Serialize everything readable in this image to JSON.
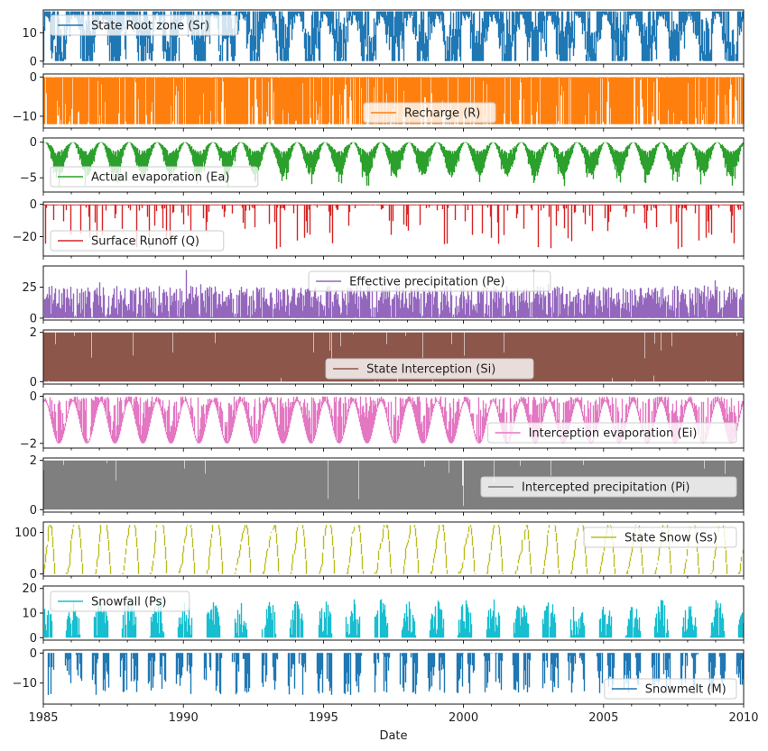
{
  "chart_data": {
    "type": "line",
    "xlabel": "Date",
    "xlim": [
      1985,
      2010
    ],
    "xticks": [
      "1985",
      "1990",
      "1995",
      "2000",
      "2005",
      "2010"
    ],
    "panels": [
      {
        "name": "State Root zone (Sr)",
        "color": "#1f77b4",
        "ylim": [
          -1,
          18
        ],
        "yticks": [
          0,
          10
        ],
        "legend": "top-left",
        "pattern": "sr"
      },
      {
        "name": "Recharge (R)",
        "color": "#ff7f0e",
        "ylim": [
          -13,
          0.8
        ],
        "yticks": [
          0,
          -10
        ],
        "legend": "bottom-center",
        "pattern": "recharge"
      },
      {
        "name": "Actual evaporation (Ea)",
        "color": "#2ca02c",
        "ylim": [
          -7,
          0.6
        ],
        "yticks": [
          0,
          -5
        ],
        "legend": "bottom-left",
        "pattern": "ea"
      },
      {
        "name": "Surface Runoff (Q)",
        "color": "#d62728",
        "ylim": [
          -32,
          1.5
        ],
        "yticks": [
          0,
          -20
        ],
        "legend": "bottom-left",
        "pattern": "q"
      },
      {
        "name": "Effective precipitation (Pe)",
        "color": "#9467bd",
        "ylim": [
          -1.5,
          42
        ],
        "yticks": [
          0,
          25
        ],
        "legend": "top-center",
        "pattern": "pe"
      },
      {
        "name": "State Interception (Si)",
        "color": "#8c564b",
        "ylim": [
          -0.1,
          2.1
        ],
        "yticks": [
          0,
          2
        ],
        "legend": "bottom-center",
        "pattern": "si"
      },
      {
        "name": "Interception evaporation (Ei)",
        "color": "#e377c2",
        "ylim": [
          -2.2,
          0.1
        ],
        "yticks": [
          0,
          -2
        ],
        "legend": "bottom-right",
        "pattern": "ei"
      },
      {
        "name": "Intercepted precipitation (Pi)",
        "color": "#7f7f7f",
        "ylim": [
          -0.1,
          2.1
        ],
        "yticks": [
          0,
          2
        ],
        "legend": "center-right",
        "pattern": "pi"
      },
      {
        "name": "State Snow (Ss)",
        "color": "#bcbd22",
        "ylim": [
          -5,
          125
        ],
        "yticks": [
          0,
          100
        ],
        "legend": "top-right",
        "pattern": "ss"
      },
      {
        "name": "Snowfall (Ps)",
        "color": "#17becf",
        "ylim": [
          -1,
          21
        ],
        "yticks": [
          0,
          10,
          20
        ],
        "legend": "top-left",
        "pattern": "ps"
      },
      {
        "name": "Snowmelt (M)",
        "color": "#1f77b4",
        "ylim": [
          -17,
          1
        ],
        "yticks": [
          0,
          -10
        ],
        "legend": "bottom-right",
        "pattern": "m"
      }
    ]
  }
}
